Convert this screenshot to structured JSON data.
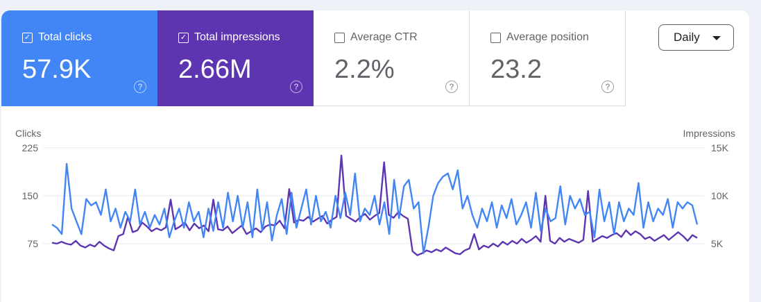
{
  "metrics": [
    {
      "label": "Total clicks",
      "value": "57.9K",
      "checked": true
    },
    {
      "label": "Total impressions",
      "value": "2.66M",
      "checked": true
    },
    {
      "label": "Average CTR",
      "value": "2.2%",
      "checked": false
    },
    {
      "label": "Average position",
      "value": "23.2",
      "checked": false
    }
  ],
  "help_glyph": "?",
  "check_glyph": "✓",
  "granularity": {
    "selected": "Daily"
  },
  "colors": {
    "clicks": "#4285f4",
    "impressions": "#5e35b1"
  },
  "chart_data": {
    "type": "line",
    "left_axis": {
      "label": "Clicks",
      "ticks": [
        "225",
        "150",
        "75"
      ],
      "tick_values": [
        225,
        150,
        75
      ],
      "range": [
        0,
        225
      ]
    },
    "right_axis": {
      "label": "Impressions",
      "ticks": [
        "15K",
        "10K",
        "5K"
      ],
      "tick_values": [
        15,
        10,
        5
      ],
      "range": [
        0,
        15
      ],
      "unit": "K"
    },
    "grid": true,
    "series": [
      {
        "name": "Clicks",
        "axis": "left",
        "color": "#4285f4",
        "values": [
          105,
          100,
          90,
          200,
          130,
          110,
          90,
          145,
          135,
          140,
          120,
          160,
          110,
          130,
          100,
          125,
          110,
          160,
          105,
          125,
          100,
          120,
          105,
          130,
          85,
          110,
          130,
          100,
          140,
          110,
          125,
          85,
          130,
          95,
          140,
          100,
          155,
          110,
          150,
          100,
          140,
          85,
          160,
          95,
          140,
          80,
          120,
          145,
          90,
          155,
          100,
          130,
          160,
          105,
          150,
          110,
          125,
          100,
          150,
          115,
          155,
          120,
          185,
          110,
          130,
          120,
          150,
          105,
          140,
          90,
          175,
          115,
          165,
          175,
          130,
          140,
          60,
          100,
          150,
          170,
          180,
          185,
          160,
          190,
          130,
          150,
          120,
          100,
          130,
          110,
          140,
          100,
          135,
          115,
          145,
          105,
          120,
          140,
          100,
          155,
          95,
          130,
          110,
          115,
          165,
          105,
          150,
          130,
          145,
          120,
          125,
          85,
          160,
          110,
          140,
          90,
          140,
          110,
          130,
          120,
          170,
          100,
          140,
          110,
          130,
          120,
          145,
          100,
          140,
          130,
          140,
          135,
          105
        ]
      },
      {
        "name": "Impressions",
        "axis": "right",
        "color": "#5e35b1",
        "values": [
          5.1,
          5,
          5.2,
          5,
          4.9,
          5.3,
          4.8,
          4.6,
          4.9,
          4.7,
          5.2,
          4.8,
          4.5,
          4.3,
          5.8,
          6,
          7.8,
          6.2,
          6.4,
          7.2,
          6.8,
          6.3,
          6.6,
          6.4,
          6.7,
          9.6,
          6.5,
          6.8,
          7.2,
          6.4,
          7.1,
          6.6,
          6.9,
          6.3,
          9.6,
          6.5,
          6.4,
          6.8,
          6.1,
          6.5,
          6.9,
          6.0,
          6.3,
          6.6,
          6.2,
          6.8,
          7.0,
          6.9,
          7.4,
          6.6,
          10.7,
          7.2,
          7.5,
          7.4,
          7.8,
          7.3,
          7.6,
          7.9,
          7.1,
          7.5,
          7.8,
          14.2,
          7.9,
          7.6,
          7.3,
          7.8,
          8.1,
          7.5,
          7.9,
          8.2,
          13.5,
          8.0,
          7.7,
          8.3,
          7.9,
          7.6,
          4.2,
          3.8,
          4.0,
          4.3,
          4.1,
          4.4,
          4.2,
          4.6,
          4.3,
          4.0,
          3.9,
          4.3,
          4.5,
          6.0,
          4.4,
          4.8,
          4.6,
          5.0,
          4.7,
          5.2,
          4.9,
          5.3,
          5.0,
          5.5,
          5.1,
          5.4,
          5.8,
          5.2,
          10.0,
          5.3,
          5.0,
          5.6,
          5.2,
          5.5,
          5.3,
          5.1,
          5.4,
          10.5,
          5.2,
          5.5,
          5.8,
          5.6,
          5.9,
          6.1,
          5.7,
          6.4,
          5.9,
          6.3,
          6.0,
          5.5,
          5.7,
          5.3,
          5.6,
          5.9,
          5.4,
          5.8,
          6.2,
          5.8,
          5.3,
          5.9,
          5.6
        ]
      }
    ]
  }
}
